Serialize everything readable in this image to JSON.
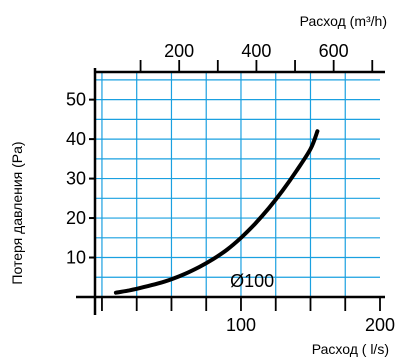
{
  "chart_data": {
    "type": "line",
    "xlabel_bottom": "Расход ( l/s)",
    "xlabel_top": "Расход  (m³/h)",
    "ylabel": "Потеря давления (Pa)",
    "xlim": [
      -5,
      200
    ],
    "ylim": [
      0,
      57
    ],
    "x_ticks": [
      "100",
      "200"
    ],
    "x_tick_values": [
      100,
      200
    ],
    "top_ticks": [
      "200",
      "400",
      "600"
    ],
    "top_tick_values": [
      200,
      400,
      600
    ],
    "y_ticks": [
      "10",
      "20",
      "30",
      "40",
      "50"
    ],
    "y_tick_values": [
      10,
      20,
      30,
      40,
      50
    ],
    "grid": true,
    "grid_color": "#1aa0e0",
    "line_color": "#000000",
    "series": [
      {
        "x": [
          10,
          20,
          30,
          40,
          50,
          60,
          70,
          80,
          90,
          100,
          110,
          120,
          130,
          140,
          150,
          155
        ],
        "y": [
          1.1,
          1.7,
          2.5,
          3.4,
          4.5,
          5.9,
          7.6,
          9.6,
          12.0,
          15.0,
          18.5,
          22.5,
          27.0,
          32.0,
          37.5,
          42.0
        ]
      }
    ],
    "annotation": {
      "text": "Ø100",
      "x": 108,
      "y": 4
    }
  }
}
